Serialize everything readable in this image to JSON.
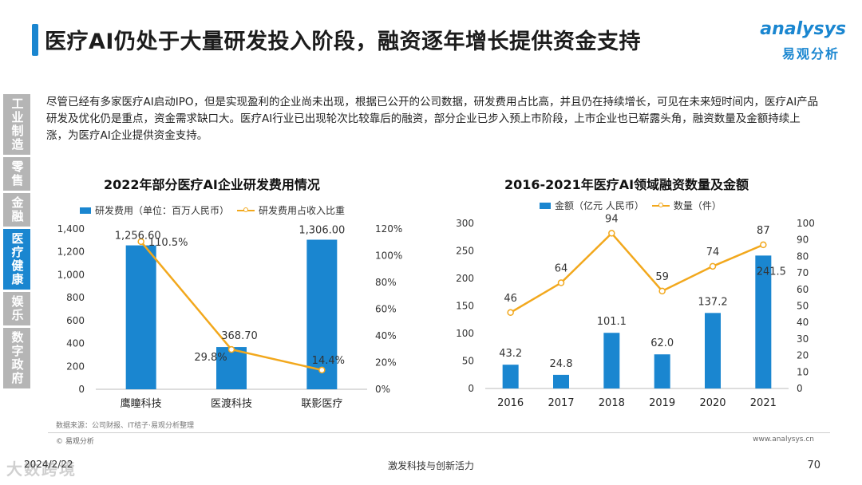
{
  "page": {
    "title": "医疗AI仍处于大量研发投入阶段，融资逐年增长提供资金支持",
    "intro": "尽管已经有多家医疗AI启动IPO，但是实现盈利的企业尚未出现，根据已公开的公司数据，研发费用占比高，并且仍在持续增长，可见在未来短时间内，医疗AI产品研发及优化仍是重点，资金需求缺口大。医疗AI行业已出现轮次比较靠后的融资，部分企业已步入预上市阶段，上市企业也已崭露头角，融资数量及金额持续上涨，为医疗AI企业提供资金支持。",
    "source": "数据来源：公司财报、IT桔子·易观分析整理",
    "copyright": "© 易观分析",
    "website": "www.analysys.cn",
    "date": "2024/2/22",
    "watermark": "大数跨境",
    "slogan": "激发科技与创新活力",
    "page_number": "70"
  },
  "logo": {
    "en": "analysys",
    "cn": "易观分析",
    "color": "#1a86d0"
  },
  "side_nav": [
    {
      "label": "工业制造",
      "active": false
    },
    {
      "label": "零售",
      "active": false
    },
    {
      "label": "金融",
      "active": false
    },
    {
      "label": "医疗健康",
      "active": true
    },
    {
      "label": "娱乐",
      "active": false
    },
    {
      "label": "数字政府",
      "active": false
    }
  ],
  "colors": {
    "bar": "#1a86d0",
    "line": "#f2a81d",
    "inactive_nav": "#b5b5b5"
  },
  "chart_data": [
    {
      "type": "bar",
      "title": "2022年部分医疗AI企业研发费用情况",
      "legend": [
        "研发费用（单位：百万人民币）",
        "研发费用占收入比重"
      ],
      "categories": [
        "鹰瞳科技",
        "医渡科技",
        "联影医疗"
      ],
      "series": [
        {
          "name": "研发费用（单位：百万人民币）",
          "type": "bar",
          "axis": "left",
          "values": [
            1256.6,
            368.7,
            1306.0
          ],
          "labels": [
            "1,256.60",
            "368.70",
            "1,306.00"
          ]
        },
        {
          "name": "研发费用占收入比重",
          "type": "line",
          "axis": "right",
          "values": [
            110.5,
            29.8,
            14.4
          ],
          "labels": [
            "110.5%",
            "29.8%",
            "14.4%"
          ]
        }
      ],
      "ylim_left": [
        0,
        1400
      ],
      "yticks_left": [
        "0",
        "200",
        "400",
        "600",
        "800",
        "1,000",
        "1,200",
        "1,400"
      ],
      "ylim_right": [
        0,
        120
      ],
      "yticks_right": [
        "0%",
        "20%",
        "40%",
        "60%",
        "80%",
        "100%",
        "120%"
      ],
      "grid": false
    },
    {
      "type": "bar",
      "title": "2016-2021年医疗AI领域融资数量及金额",
      "legend": [
        "金额（亿元 人民币）",
        "数量（件）"
      ],
      "categories": [
        "2016",
        "2017",
        "2018",
        "2019",
        "2020",
        "2021"
      ],
      "series": [
        {
          "name": "金额（亿元 人民币）",
          "type": "bar",
          "axis": "left",
          "values": [
            43.2,
            24.8,
            101.1,
            62.0,
            137.2,
            241.5
          ],
          "labels": [
            "43.2",
            "24.8",
            "101.1",
            "62.0",
            "137.2",
            "241.5"
          ]
        },
        {
          "name": "数量（件）",
          "type": "line",
          "axis": "right",
          "values": [
            46,
            64,
            94,
            59,
            74,
            87
          ],
          "labels": [
            "46",
            "64",
            "94",
            "59",
            "74",
            "87"
          ]
        }
      ],
      "ylim_left": [
        0,
        300
      ],
      "yticks_left": [
        "0",
        "50",
        "100",
        "150",
        "200",
        "250",
        "300"
      ],
      "ylim_right": [
        0,
        100
      ],
      "yticks_right": [
        "0",
        "10",
        "20",
        "30",
        "40",
        "50",
        "60",
        "70",
        "80",
        "90",
        "100"
      ],
      "grid": false
    }
  ]
}
